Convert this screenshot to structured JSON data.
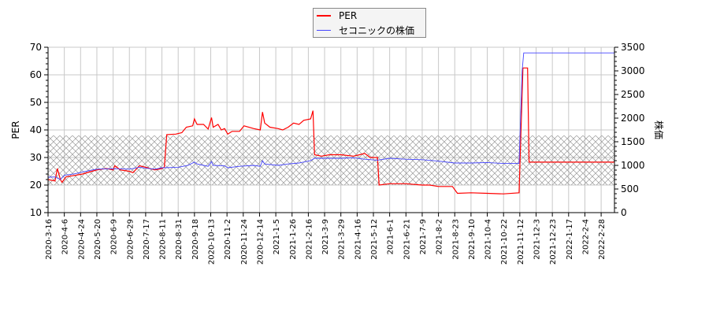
{
  "chart_data": {
    "type": "line",
    "title": "",
    "xlabel": "",
    "ylabel": "PER",
    "y2label": "株価",
    "ylim": [
      10,
      70
    ],
    "y2lim": [
      0,
      3500
    ],
    "yticks": [
      "10",
      "20",
      "30",
      "40",
      "50",
      "60",
      "70"
    ],
    "y2ticks": [
      "0",
      "500",
      "1000",
      "1500",
      "2000",
      "2500",
      "3000",
      "3500"
    ],
    "grid": true,
    "legend_position": "top-center",
    "band": {
      "from": 20,
      "to": 38,
      "axis": "PER",
      "style": "crosshatch"
    },
    "x_end": "2022-3-15",
    "xticks": [
      "2020-3-16",
      "2020-4-6",
      "2020-4-24",
      "2020-5-20",
      "2020-6-9",
      "2020-6-29",
      "2020-7-17",
      "2020-8-11",
      "2020-8-31",
      "2020-9-18",
      "2020-10-13",
      "2020-11-2",
      "2020-11-24",
      "2020-12-14",
      "2021-1-5",
      "2021-1-26",
      "2021-2-16",
      "2021-3-9",
      "2021-3-29",
      "2021-4-16",
      "2021-5-12",
      "2021-6-1",
      "2021-6-21",
      "2021-7-9",
      "2021-8-2",
      "2021-8-23",
      "2021-9-10",
      "2021-10-4",
      "2021-10-22",
      "2021-11-12",
      "2021-12-3",
      "2021-12-23",
      "2022-1-17",
      "2022-2-4",
      "2022-2-28"
    ],
    "series": [
      {
        "name": "PER",
        "axis": "left",
        "color": "#ff0000",
        "points": [
          [
            "2020-3-16",
            22
          ],
          [
            "2020-3-25",
            21.5
          ],
          [
            "2020-3-28",
            26
          ],
          [
            "2020-4-1",
            22
          ],
          [
            "2020-4-3",
            21
          ],
          [
            "2020-4-8",
            23
          ],
          [
            "2020-4-17",
            23.5
          ],
          [
            "2020-4-27",
            24
          ],
          [
            "2020-5-12",
            25
          ],
          [
            "2020-5-20",
            25.5
          ],
          [
            "2020-6-1",
            26
          ],
          [
            "2020-6-9",
            25.5
          ],
          [
            "2020-6-11",
            27
          ],
          [
            "2020-6-18",
            25.5
          ],
          [
            "2020-6-29",
            25
          ],
          [
            "2020-7-3",
            24.5
          ],
          [
            "2020-7-10",
            27
          ],
          [
            "2020-7-17",
            26.5
          ],
          [
            "2020-7-31",
            25.5
          ],
          [
            "2020-8-11",
            26
          ],
          [
            "2020-8-14",
            26.5
          ],
          [
            "2020-8-17",
            38.3
          ],
          [
            "2020-8-28",
            38.5
          ],
          [
            "2020-9-4",
            39
          ],
          [
            "2020-9-9",
            41
          ],
          [
            "2020-9-16",
            41.5
          ],
          [
            "2020-9-18",
            44
          ],
          [
            "2020-9-22",
            42
          ],
          [
            "2020-10-2",
            42
          ],
          [
            "2020-10-9",
            40.3
          ],
          [
            "2020-10-14",
            44.5
          ],
          [
            "2020-10-16",
            41
          ],
          [
            "2020-10-22",
            42
          ],
          [
            "2020-10-26",
            40
          ],
          [
            "2020-10-30",
            40.5
          ],
          [
            "2020-11-3",
            38.5
          ],
          [
            "2020-11-9",
            39.5
          ],
          [
            "2020-11-19",
            39.5
          ],
          [
            "2020-11-25",
            41.5
          ],
          [
            "2020-12-7",
            40.5
          ],
          [
            "2020-12-15",
            40
          ],
          [
            "2020-12-18",
            46.5
          ],
          [
            "2020-12-21",
            42.5
          ],
          [
            "2020-12-28",
            41
          ],
          [
            "2021-1-8",
            40.5
          ],
          [
            "2021-1-14",
            40
          ],
          [
            "2021-1-21",
            41
          ],
          [
            "2021-1-28",
            42.5
          ],
          [
            "2021-2-4",
            42
          ],
          [
            "2021-2-10",
            43.5
          ],
          [
            "2021-2-19",
            44
          ],
          [
            "2021-2-22",
            47
          ],
          [
            "2021-2-24",
            31
          ],
          [
            "2021-3-5",
            30.5
          ],
          [
            "2021-3-15",
            31
          ],
          [
            "2021-3-29",
            31
          ],
          [
            "2021-4-12",
            30.5
          ],
          [
            "2021-4-20",
            31
          ],
          [
            "2021-4-28",
            31.5
          ],
          [
            "2021-5-7",
            30
          ],
          [
            "2021-5-17",
            30
          ],
          [
            "2021-5-19",
            20
          ],
          [
            "2021-6-1",
            20.5
          ],
          [
            "2021-6-21",
            20.5
          ],
          [
            "2021-7-9",
            20
          ],
          [
            "2021-7-20",
            20
          ],
          [
            "2021-8-2",
            19.5
          ],
          [
            "2021-8-20",
            19.5
          ],
          [
            "2021-8-26",
            17
          ],
          [
            "2021-9-10",
            17.2
          ],
          [
            "2021-10-4",
            17
          ],
          [
            "2021-10-22",
            16.8
          ],
          [
            "2021-11-11",
            17.2
          ],
          [
            "2021-11-16",
            62.5
          ],
          [
            "2021-11-22",
            62.5
          ],
          [
            "2021-11-24",
            28.3
          ],
          [
            "2022-3-15",
            28.3
          ]
        ]
      },
      {
        "name": "セコニックの株価",
        "axis": "right",
        "color": "#4444ff",
        "points": [
          [
            "2020-3-16",
            750
          ],
          [
            "2020-3-25",
            755
          ],
          [
            "2020-4-1",
            700
          ],
          [
            "2020-4-6",
            790
          ],
          [
            "2020-4-17",
            820
          ],
          [
            "2020-4-27",
            860
          ],
          [
            "2020-5-12",
            900
          ],
          [
            "2020-5-20",
            920
          ],
          [
            "2020-6-9",
            930
          ],
          [
            "2020-6-29",
            920
          ],
          [
            "2020-7-10",
            960
          ],
          [
            "2020-7-17",
            940
          ],
          [
            "2020-7-31",
            920
          ],
          [
            "2020-8-11",
            950
          ],
          [
            "2020-8-31",
            960
          ],
          [
            "2020-9-11",
            1000
          ],
          [
            "2020-9-18",
            1070
          ],
          [
            "2020-9-22",
            1030
          ],
          [
            "2020-10-9",
            980
          ],
          [
            "2020-10-14",
            1080
          ],
          [
            "2020-10-16",
            1000
          ],
          [
            "2020-10-30",
            990
          ],
          [
            "2020-11-3",
            950
          ],
          [
            "2020-11-19",
            980
          ],
          [
            "2020-12-7",
            1000
          ],
          [
            "2020-12-15",
            980
          ],
          [
            "2020-12-18",
            1100
          ],
          [
            "2020-12-21",
            1030
          ],
          [
            "2021-1-8",
            1000
          ],
          [
            "2021-1-21",
            1030
          ],
          [
            "2021-2-4",
            1050
          ],
          [
            "2021-2-19",
            1100
          ],
          [
            "2021-2-24",
            1150
          ],
          [
            "2021-3-29",
            1150
          ],
          [
            "2021-4-12",
            1160
          ],
          [
            "2021-4-28",
            1130
          ],
          [
            "2021-5-17",
            1110
          ],
          [
            "2021-6-1",
            1150
          ],
          [
            "2021-6-21",
            1130
          ],
          [
            "2021-7-9",
            1120
          ],
          [
            "2021-8-2",
            1090
          ],
          [
            "2021-8-23",
            1050
          ],
          [
            "2021-9-10",
            1050
          ],
          [
            "2021-10-4",
            1060
          ],
          [
            "2021-10-22",
            1040
          ],
          [
            "2021-11-11",
            1040
          ],
          [
            "2021-11-15",
            3000
          ],
          [
            "2021-11-17",
            3380
          ],
          [
            "2022-3-15",
            3380
          ]
        ]
      }
    ]
  }
}
